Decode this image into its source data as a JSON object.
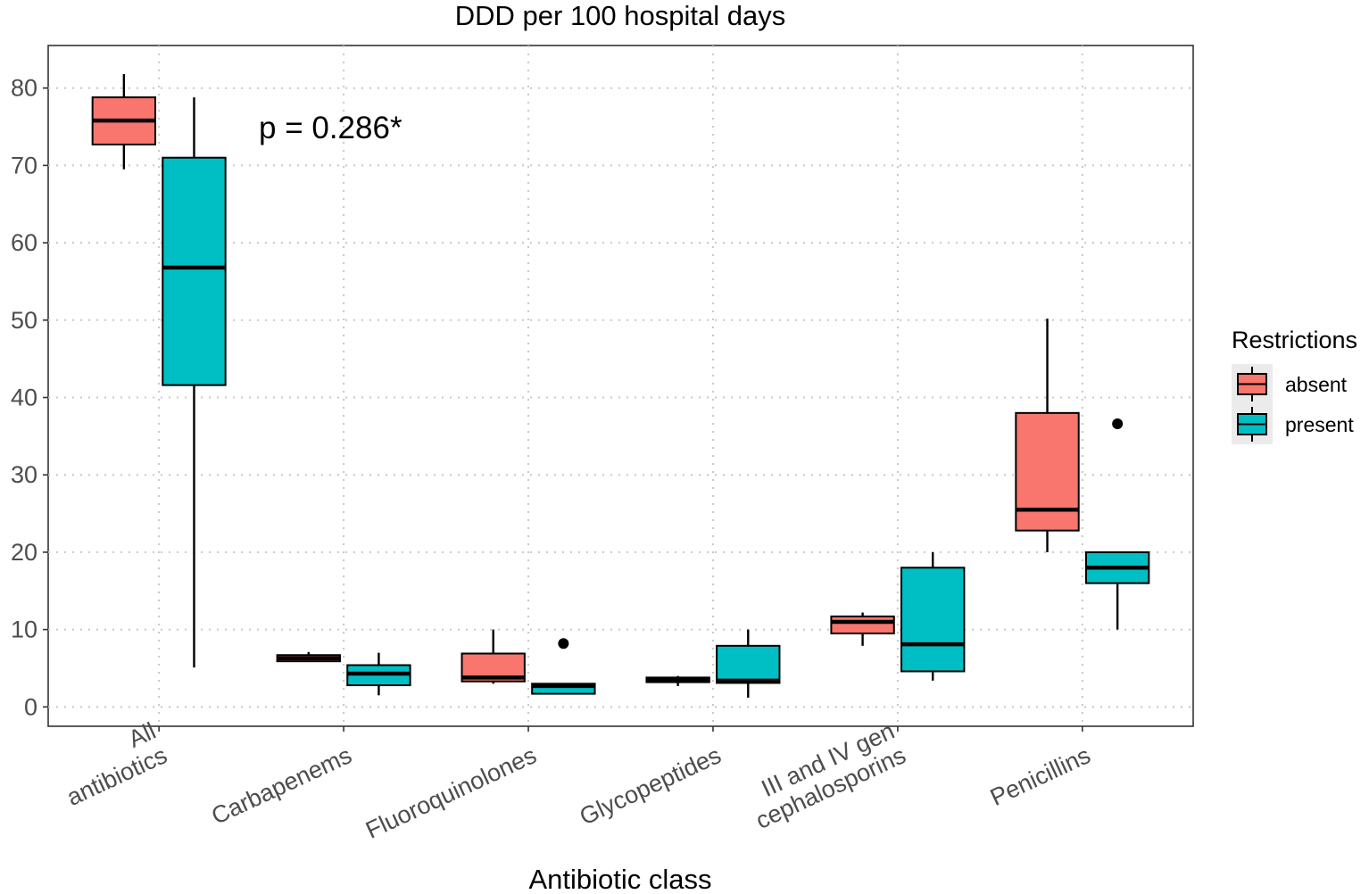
{
  "chart_data": {
    "type": "box",
    "title": "DDD per 100 hospital days",
    "xlabel": "Antibiotic class",
    "ylabel": "",
    "ylim": [
      -2.5,
      85.5
    ],
    "yticks": [
      0,
      10,
      20,
      30,
      40,
      50,
      60,
      70,
      80
    ],
    "grid": "dotted",
    "categories": [
      {
        "label_lines": [
          "All",
          "antibiotics"
        ]
      },
      {
        "label_lines": [
          "Carbapenems"
        ]
      },
      {
        "label_lines": [
          "Fluoroquinolones"
        ]
      },
      {
        "label_lines": [
          "Glycopeptides"
        ]
      },
      {
        "label_lines": [
          "III and IV gen",
          "cephalosporins"
        ]
      },
      {
        "label_lines": [
          "Penicillins"
        ]
      }
    ],
    "legend": {
      "title": "Restrictions",
      "position": "right",
      "entries": [
        {
          "name": "absent",
          "color": "#F8766D"
        },
        {
          "name": "present",
          "color": "#00BFC4"
        }
      ]
    },
    "series": [
      {
        "name": "absent",
        "color": "#F8766D",
        "boxes": [
          {
            "min": 69.5,
            "q1": 72.7,
            "median": 75.8,
            "q3": 78.8,
            "max": 81.8,
            "outliers": []
          },
          {
            "min": 5.8,
            "q1": 5.9,
            "median": 6.3,
            "q3": 6.7,
            "max": 7.1,
            "outliers": []
          },
          {
            "min": 3.0,
            "q1": 3.3,
            "median": 3.8,
            "q3": 6.9,
            "max": 10.0,
            "outliers": []
          },
          {
            "min": 2.7,
            "q1": 3.2,
            "median": 3.5,
            "q3": 3.8,
            "max": 4.0,
            "outliers": []
          },
          {
            "min": 7.9,
            "q1": 9.5,
            "median": 11.0,
            "q3": 11.7,
            "max": 12.2,
            "outliers": []
          },
          {
            "min": 20.0,
            "q1": 22.8,
            "median": 25.5,
            "q3": 38.0,
            "max": 50.2,
            "outliers": []
          }
        ]
      },
      {
        "name": "present",
        "color": "#00BFC4",
        "boxes": [
          {
            "min": 5.1,
            "q1": 41.6,
            "median": 56.8,
            "q3": 71.0,
            "max": 78.8,
            "outliers": []
          },
          {
            "min": 1.5,
            "q1": 2.8,
            "median": 4.3,
            "q3": 5.4,
            "max": 7.0,
            "outliers": []
          },
          {
            "min": 1.6,
            "q1": 1.7,
            "median": 2.7,
            "q3": 3.0,
            "max": 3.0,
            "outliers": [
              8.2
            ]
          },
          {
            "min": 1.2,
            "q1": 3.1,
            "median": 3.4,
            "q3": 7.9,
            "max": 10.0,
            "outliers": []
          },
          {
            "min": 3.4,
            "q1": 4.6,
            "median": 8.1,
            "q3": 18.0,
            "max": 20.0,
            "outliers": []
          },
          {
            "min": 10.0,
            "q1": 16.0,
            "median": 18.0,
            "q3": 20.0,
            "max": 20.0,
            "outliers": [
              36.6
            ]
          }
        ]
      }
    ],
    "annotations": [
      {
        "text": "p = 0.286*",
        "x_category_index": 0,
        "y": 74
      }
    ]
  }
}
